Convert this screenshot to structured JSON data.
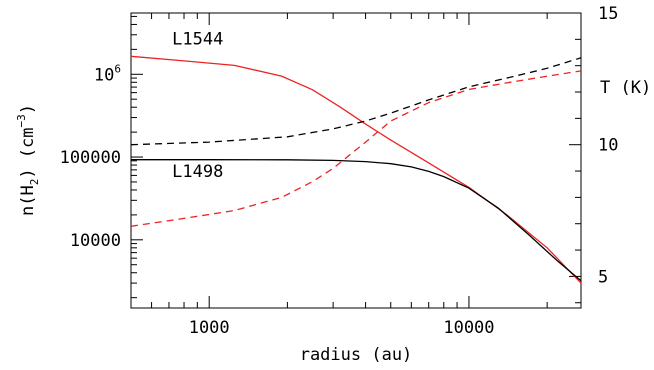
{
  "chart_data": {
    "type": "line",
    "xlabel": "radius (au)",
    "ylabel_left_parts": [
      "n(H",
      "2",
      ")  (cm",
      "−3",
      ")"
    ],
    "ylabel_right": "T (K)",
    "xscale": "log",
    "yscale_left": "log",
    "xlim": [
      500,
      27000
    ],
    "ylim_left": [
      1500,
      5500000
    ],
    "ylim_right": [
      3.8,
      15
    ],
    "x_ticks": [
      {
        "value": 1000,
        "label": "1000"
      },
      {
        "value": 10000,
        "label": "10000"
      }
    ],
    "y_left_ticks": [
      {
        "value": 10000,
        "label": "10000"
      },
      {
        "value": 100000,
        "label": "100000"
      },
      {
        "value": 1000000,
        "label_base": "10",
        "label_exp": "6"
      }
    ],
    "y_right_ticks": [
      {
        "value": 5,
        "label": "5"
      },
      {
        "value": 10,
        "label": "10"
      },
      {
        "value": 15,
        "label": "15"
      }
    ],
    "series": [
      {
        "name": "L1544",
        "quantity": "density",
        "axis": "left",
        "color": "#ee2222",
        "dash": "solid",
        "label_at": [
          720,
          2300000
        ],
        "x": [
          500,
          800,
          1250,
          1900,
          2500,
          3200,
          4000,
          5000,
          7000,
          10000,
          14000,
          20000,
          27000
        ],
        "y": [
          1650000,
          1450000,
          1280000,
          950000,
          650000,
          400000,
          250000,
          160000,
          85000,
          43000,
          20000,
          8000,
          3000
        ]
      },
      {
        "name": "L1498",
        "quantity": "density",
        "axis": "left",
        "color": "#000000",
        "dash": "solid",
        "label_at": [
          720,
          57000
        ],
        "x": [
          500,
          1000,
          2000,
          3000,
          4000,
          5000,
          6000,
          7000,
          8000,
          10000,
          13000,
          17000,
          22000,
          27000
        ],
        "y": [
          93000,
          93000,
          92500,
          91000,
          88000,
          83000,
          76000,
          67000,
          58000,
          42000,
          24000,
          11500,
          5500,
          3200
        ]
      },
      {
        "name": "",
        "quantity": "temperature",
        "axis": "right",
        "color": "#000000",
        "dash": "dashed",
        "x": [
          500,
          1000,
          2000,
          3000,
          4000,
          5000,
          7000,
          10000,
          15000,
          20000,
          27000
        ],
        "y": [
          10.0,
          10.1,
          10.3,
          10.6,
          10.9,
          11.2,
          11.7,
          12.2,
          12.6,
          12.9,
          13.3
        ]
      },
      {
        "name": "",
        "quantity": "temperature",
        "axis": "right",
        "color": "#ee2222",
        "dash": "dashed",
        "x": [
          500,
          800,
          1250,
          1900,
          2500,
          3000,
          4000,
          5000,
          7000,
          10000,
          15000,
          20000,
          27000
        ],
        "y": [
          6.9,
          7.2,
          7.5,
          8.0,
          8.6,
          9.1,
          10.1,
          10.9,
          11.6,
          12.1,
          12.4,
          12.6,
          12.8
        ]
      }
    ]
  }
}
